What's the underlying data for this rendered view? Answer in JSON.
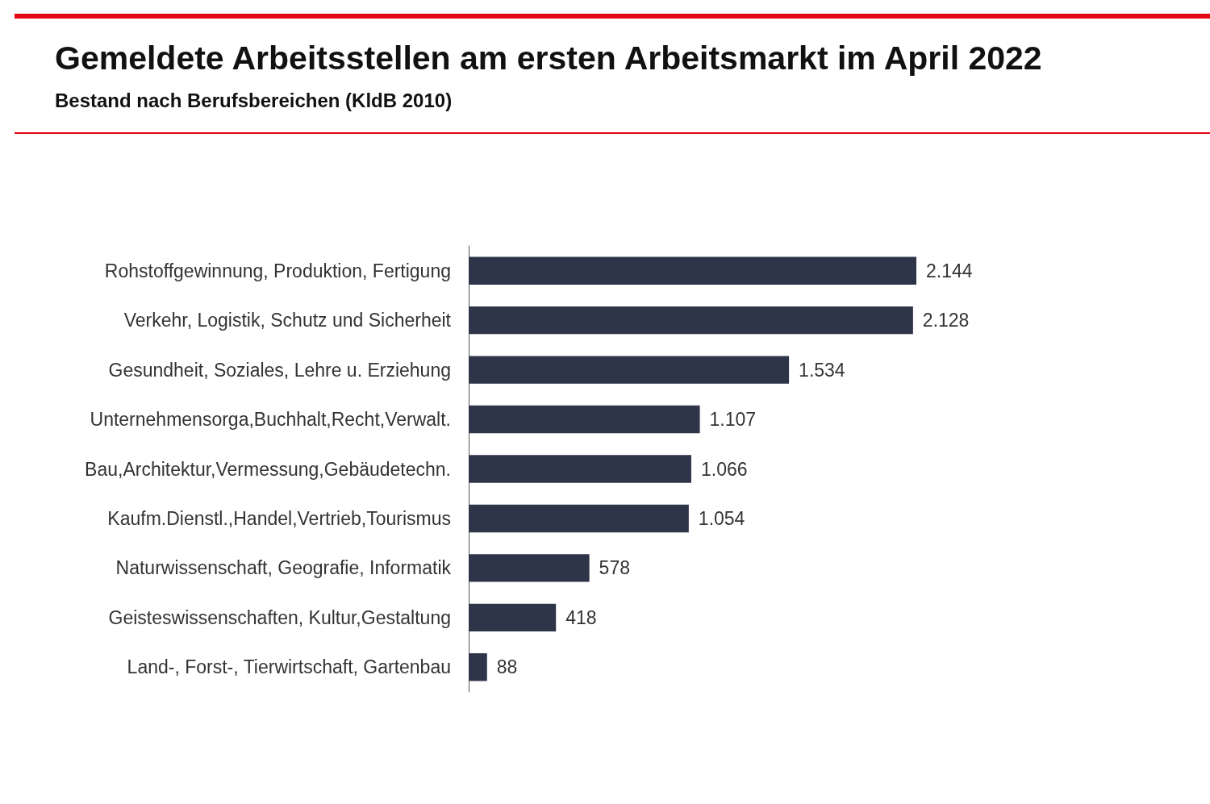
{
  "chart_data": {
    "type": "bar",
    "orientation": "horizontal",
    "title": "Gemeldete Arbeitsstellen am ersten Arbeitsmarkt im April 2022",
    "subtitle": "Bestand nach Berufsbereichen (KldB 2010)",
    "categories": [
      "Rohstoffgewinnung, Produktion, Fertigung",
      "Verkehr, Logistik, Schutz und Sicherheit",
      "Gesundheit, Soziales, Lehre u. Erziehung",
      "Unternehmensorga,Buchhalt,Recht,Verwalt.",
      "Bau,Architektur,Vermessung,Gebäudetechn.",
      "Kaufm.Dienstl.,Handel,Vertrieb,Tourismus",
      "Naturwissenschaft, Geografie, Informatik",
      "Geisteswissenschaften, Kultur,Gestaltung",
      "Land-, Forst-, Tierwirtschaft, Gartenbau"
    ],
    "values": [
      2144,
      2128,
      1534,
      1107,
      1066,
      1054,
      578,
      418,
      88
    ],
    "value_labels": [
      "2.144",
      "2.128",
      "1.534",
      "1.107",
      "1.066",
      "1.054",
      "578",
      "418",
      "88"
    ],
    "color": "#2e3549"
  }
}
